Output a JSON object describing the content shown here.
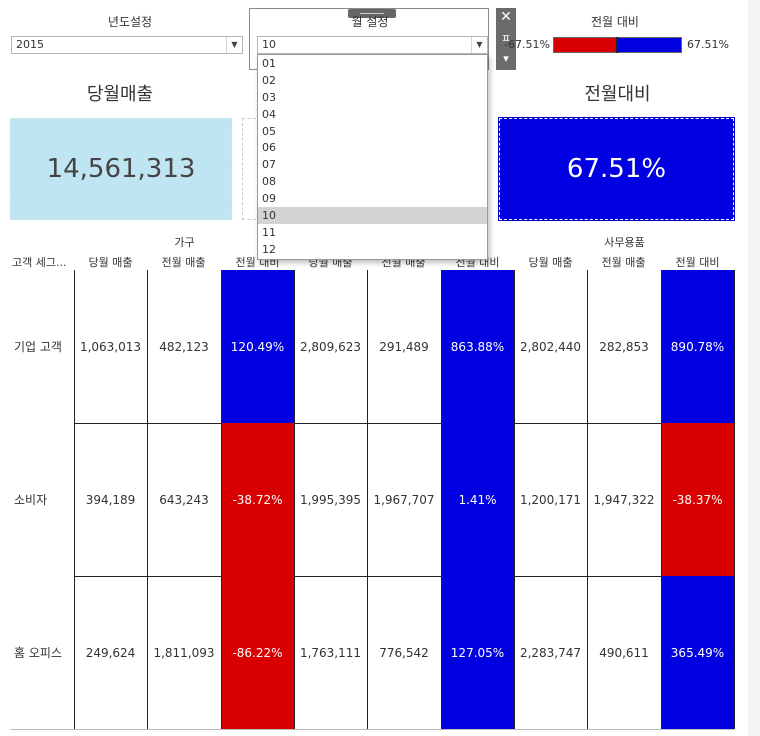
{
  "filters": {
    "year": {
      "label": "년도설정",
      "value": "2015"
    },
    "month": {
      "label": "월 설정",
      "value": "10"
    },
    "mom": {
      "label": "전월 대비",
      "min": "-67.51%",
      "max": "67.51%"
    }
  },
  "dropdown": {
    "options": [
      "01",
      "02",
      "03",
      "04",
      "05",
      "06",
      "07",
      "08",
      "09",
      "10",
      "11",
      "12"
    ],
    "selected_index": 9
  },
  "toolbar": {
    "close": "✕",
    "pin": "ㅍ",
    "menu": "▾"
  },
  "kpi": {
    "sales_title": "당월매출",
    "sales_value": "14,561,313",
    "mom_title": "전월대비",
    "mom_value": "67.51%"
  },
  "table": {
    "row_header": "고객 세그...",
    "categories": [
      "가구",
      "",
      "사무용품"
    ],
    "columns": [
      "당월 매출",
      "전월 매출",
      "전월 대비"
    ],
    "rows": [
      {
        "label": "기업 고객",
        "values": [
          "1,063,013",
          "482,123",
          "120.49%",
          "2,809,623",
          "291,489",
          "863.88%",
          "2,802,440",
          "282,853",
          "890.78%"
        ]
      },
      {
        "label": "소비자",
        "values": [
          "394,189",
          "643,243",
          "-38.72%",
          "1,995,395",
          "1,967,707",
          "1.41%",
          "1,200,171",
          "1,947,322",
          "-38.37%"
        ]
      },
      {
        "label": "홈 오피스",
        "values": [
          "249,624",
          "1,811,093",
          "-86.22%",
          "1,763,111",
          "776,542",
          "127.05%",
          "2,283,747",
          "490,611",
          "365.49%"
        ]
      }
    ]
  },
  "colors": {
    "positive": "#0000e0",
    "negative": "#d80000",
    "sales_bg": "#bfe4f2"
  }
}
